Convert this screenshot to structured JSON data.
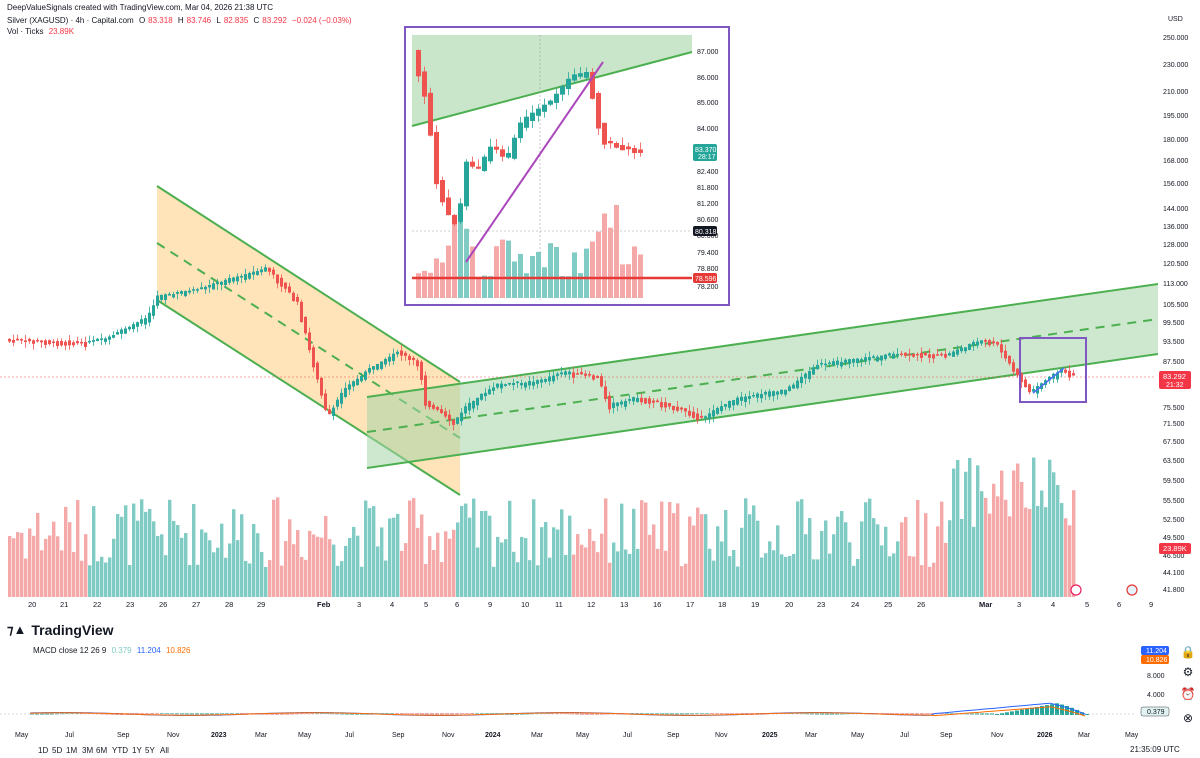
{
  "header": {
    "attribution": "DeepValueSignals created with TradingView.com, Mar 04, 2026 21:38 UTC",
    "symbol": "Silver (XAGUSD) · 4h · Capital.com",
    "o_label": "O",
    "o_value": "83.318",
    "h_label": "H",
    "h_value": "83.746",
    "l_label": "L",
    "l_value": "82.835",
    "c_label": "C",
    "c_value": "83.292",
    "change": "−0.024 (−0.03%)",
    "vol_label": "Vol · Ticks",
    "vol_value": "23.89K"
  },
  "price_axis": {
    "unit": "USD",
    "ticks": [
      "250.000",
      "230.000",
      "210.000",
      "195.000",
      "180.000",
      "168.000",
      "156.000",
      "144.000",
      "136.000",
      "128.000",
      "120.500",
      "113.000",
      "105.500",
      "99.500",
      "93.500",
      "87.500",
      "81.500",
      "75.500",
      "71.500",
      "67.500",
      "63.500",
      "59.500",
      "55.500",
      "52.500",
      "49.500",
      "46.500",
      "44.100",
      "41.800"
    ],
    "last_price": "83.292",
    "last_time": "21:32",
    "last_volume": "23.89K"
  },
  "time_axis": {
    "labels": [
      "20",
      "21",
      "22",
      "23",
      "26",
      "27",
      "28",
      "29",
      "Feb",
      "3",
      "4",
      "5",
      "6",
      "9",
      "10",
      "11",
      "12",
      "13",
      "16",
      "17",
      "18",
      "19",
      "20",
      "23",
      "24",
      "25",
      "26",
      "Mar",
      "3",
      "4",
      "5",
      "6",
      "9"
    ]
  },
  "inset": {
    "ticks": [
      "87.000",
      "86.000",
      "85.000",
      "84.000",
      "82.400",
      "81.800",
      "81.200",
      "80.600",
      "80.000",
      "79.400",
      "78.800",
      "78.200"
    ],
    "price_label": "83.370",
    "time_label": "28:17",
    "cross_label": "80.318",
    "level_label": "78.596"
  },
  "brand": {
    "name": "TradingView"
  },
  "macd": {
    "title": "MACD close 12 26 9",
    "hist_value": "0.379",
    "macd_value": "11.204",
    "signal_value": "10.826",
    "ticks": [
      "8.000",
      "4.000"
    ],
    "label_macd": "11.204",
    "label_signal": "10.826",
    "label_hist": "0.379",
    "colors": {
      "macd": "#2962ff",
      "signal": "#ff6d00",
      "hist_up": "#26a69a",
      "hist_down": "#ef5350"
    }
  },
  "macd_axis": {
    "labels": [
      "May",
      "Jul",
      "Sep",
      "Nov",
      "2023",
      "Mar",
      "May",
      "Jul",
      "Sep",
      "Nov",
      "2024",
      "Mar",
      "May",
      "Jul",
      "Sep",
      "Nov",
      "2025",
      "Mar",
      "May",
      "Jul",
      "Sep",
      "Nov",
      "2026",
      "Mar",
      "May"
    ]
  },
  "footer": {
    "timeframes": [
      "1D",
      "5D",
      "1M",
      "3M",
      "6M",
      "YTD",
      "1Y",
      "5Y",
      "All"
    ],
    "clock": "21:35:09 UTC"
  },
  "colors": {
    "bull": "#26a69a",
    "bear": "#ef5350",
    "channel_green": "#4caf50",
    "channel_orange": "#ff9800",
    "highlight_box": "#7e57c2",
    "resistance": "#f23645"
  }
}
